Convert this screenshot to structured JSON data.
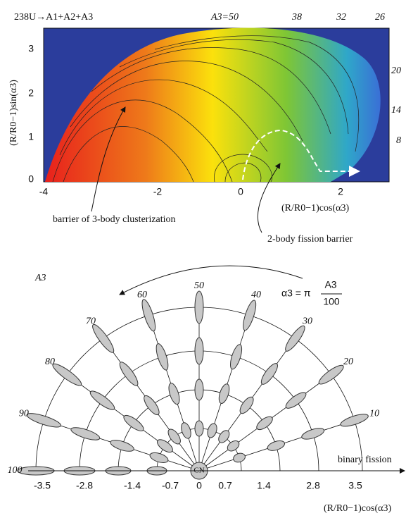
{
  "top_panel": {
    "title": "238U→A1+A2+A3",
    "top_labels": [
      "A3=50",
      "38",
      "32",
      "26"
    ],
    "right_labels": [
      "20",
      "14",
      "8"
    ],
    "x_ticks": [
      "-4",
      "-2",
      "0",
      "2"
    ],
    "y_ticks": [
      "0",
      "1",
      "2",
      "3"
    ],
    "x_label": "(R/R0−1)cos(α3)",
    "y_label": "(R/R0−1)sin(α3)",
    "annotations": [
      "barrier of 3-body clusterization",
      "2-body fission barrier"
    ]
  },
  "bottom_panel": {
    "a3_label": "A3",
    "formula_left": "α3 = π",
    "formula_num": "A3",
    "formula_den": "100",
    "angle_labels": [
      "10",
      "20",
      "30",
      "40",
      "50",
      "60",
      "70",
      "80",
      "90",
      "100"
    ],
    "x_ticks": [
      "-3.5",
      "-2.8",
      "-1.4",
      "-0.7",
      "0",
      "0.7",
      "1.4",
      "2.8",
      "3.5"
    ],
    "binary_label": "binary fission",
    "center_label": "CN",
    "x_label": "(R/R0−1)cos(α3)"
  }
}
